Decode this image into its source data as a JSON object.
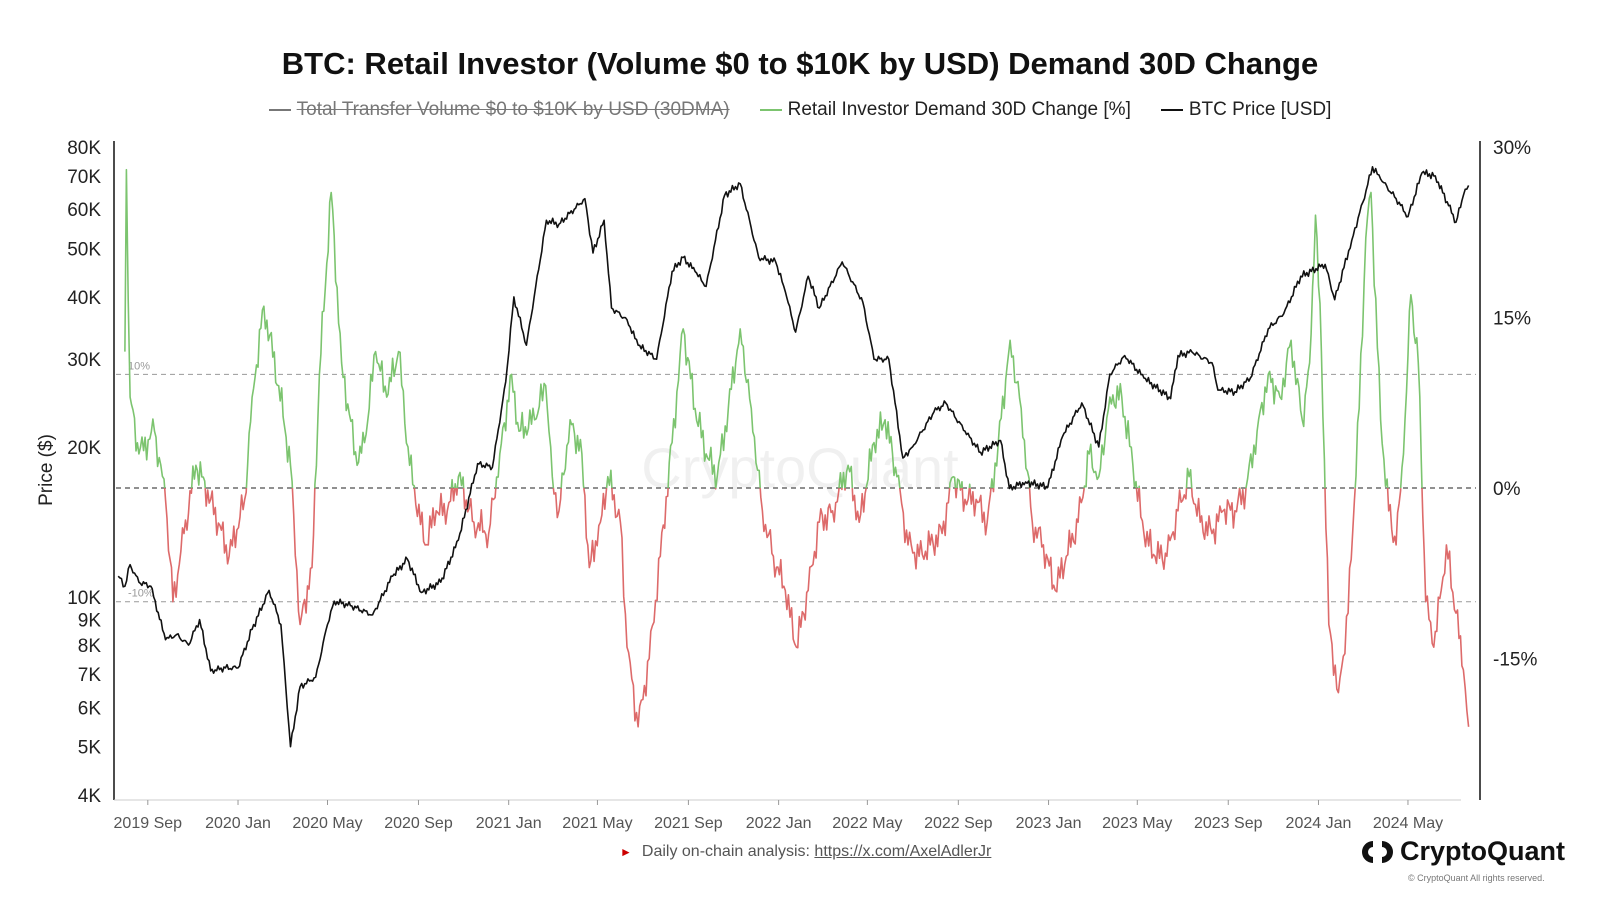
{
  "chart_data": {
    "type": "line",
    "title": "BTC: Retail Investor (Volume $0 to $10K by USD) Demand 30D Change",
    "legend": [
      {
        "name": "Total Transfer Volume $0 to $10K by USD (30DMA)",
        "color": "#777777",
        "hidden": true
      },
      {
        "name": "Retail Investor Demand 30D Change [%]",
        "color": "#7cc46f",
        "hidden": false
      },
      {
        "name": "BTC Price [USD]",
        "color": "#111111",
        "hidden": false
      }
    ],
    "ylabel_left": "Price ($)",
    "yscale_left": "log",
    "ylim_left": [
      4000,
      80000
    ],
    "yticks_left": [
      {
        "v": 80000,
        "label": "80K"
      },
      {
        "v": 70000,
        "label": "70K"
      },
      {
        "v": 60000,
        "label": "60K"
      },
      {
        "v": 50000,
        "label": "50K"
      },
      {
        "v": 40000,
        "label": "40K"
      },
      {
        "v": 30000,
        "label": "30K"
      },
      {
        "v": 20000,
        "label": "20K"
      },
      {
        "v": 10000,
        "label": "10K"
      },
      {
        "v": 9000,
        "label": "9K"
      },
      {
        "v": 8000,
        "label": "8K"
      },
      {
        "v": 7000,
        "label": "7K"
      },
      {
        "v": 6000,
        "label": "6K"
      },
      {
        "v": 5000,
        "label": "5K"
      },
      {
        "v": 4000,
        "label": "4K"
      }
    ],
    "ylim_right": [
      -27,
      30
    ],
    "yticks_right": [
      {
        "v": 30,
        "label": "30%"
      },
      {
        "v": 15,
        "label": "15%"
      },
      {
        "v": 0,
        "label": "0%"
      },
      {
        "v": -15,
        "label": "-15%"
      }
    ],
    "reference_lines": [
      {
        "v": 10,
        "label": "10%",
        "style": "dashed"
      },
      {
        "v": 0,
        "label": "",
        "style": "dashed"
      },
      {
        "v": -10,
        "label": "-10%",
        "style": "dashed"
      }
    ],
    "xlim": [
      "2019-07-20",
      "2024-08-01"
    ],
    "xticks": [
      {
        "date": "2019-09-01",
        "label": "2019 Sep"
      },
      {
        "date": "2020-01-01",
        "label": "2020 Jan"
      },
      {
        "date": "2020-05-01",
        "label": "2020 May"
      },
      {
        "date": "2020-09-01",
        "label": "2020 Sep"
      },
      {
        "date": "2021-01-01",
        "label": "2021 Jan"
      },
      {
        "date": "2021-05-01",
        "label": "2021 May"
      },
      {
        "date": "2021-09-01",
        "label": "2021 Sep"
      },
      {
        "date": "2022-01-01",
        "label": "2022 Jan"
      },
      {
        "date": "2022-05-01",
        "label": "2022 May"
      },
      {
        "date": "2022-09-01",
        "label": "2022 Sep"
      },
      {
        "date": "2023-01-01",
        "label": "2023 Jan"
      },
      {
        "date": "2023-05-01",
        "label": "2023 May"
      },
      {
        "date": "2023-09-01",
        "label": "2023 Sep"
      },
      {
        "date": "2024-01-01",
        "label": "2024 Jan"
      },
      {
        "date": "2024-05-01",
        "label": "2024 May"
      }
    ],
    "series": [
      {
        "name": "BTC Price [USD]",
        "axis": "left",
        "color": "#111111",
        "points": [
          [
            "2019-07-23",
            11000
          ],
          [
            "2019-08-01",
            10500
          ],
          [
            "2019-08-08",
            11600
          ],
          [
            "2019-08-20",
            10700
          ],
          [
            "2019-09-05",
            10500
          ],
          [
            "2019-09-25",
            8200
          ],
          [
            "2019-10-10",
            8400
          ],
          [
            "2019-10-26",
            8000
          ],
          [
            "2019-11-10",
            9000
          ],
          [
            "2019-11-25",
            7100
          ],
          [
            "2019-12-15",
            7200
          ],
          [
            "2020-01-01",
            7200
          ],
          [
            "2020-01-20",
            8600
          ],
          [
            "2020-02-12",
            10300
          ],
          [
            "2020-02-28",
            8800
          ],
          [
            "2020-03-12",
            5000
          ],
          [
            "2020-03-25",
            6600
          ],
          [
            "2020-04-15",
            6900
          ],
          [
            "2020-05-01",
            8800
          ],
          [
            "2020-05-10",
            9800
          ],
          [
            "2020-06-01",
            9600
          ],
          [
            "2020-07-01",
            9200
          ],
          [
            "2020-07-28",
            11000
          ],
          [
            "2020-08-17",
            11900
          ],
          [
            "2020-09-05",
            10200
          ],
          [
            "2020-10-01",
            10700
          ],
          [
            "2020-10-25",
            13000
          ],
          [
            "2020-11-20",
            18500
          ],
          [
            "2020-12-10",
            18200
          ],
          [
            "2020-12-28",
            27000
          ],
          [
            "2021-01-08",
            40000
          ],
          [
            "2021-01-25",
            32000
          ],
          [
            "2021-02-21",
            57000
          ],
          [
            "2021-03-10",
            56000
          ],
          [
            "2021-04-14",
            63000
          ],
          [
            "2021-04-25",
            49000
          ],
          [
            "2021-05-10",
            57000
          ],
          [
            "2021-05-20",
            38000
          ],
          [
            "2021-06-10",
            36000
          ],
          [
            "2021-06-25",
            32000
          ],
          [
            "2021-07-20",
            30000
          ],
          [
            "2021-08-10",
            45000
          ],
          [
            "2021-08-25",
            48000
          ],
          [
            "2021-09-10",
            45000
          ],
          [
            "2021-09-25",
            42000
          ],
          [
            "2021-10-20",
            64000
          ],
          [
            "2021-11-10",
            67500
          ],
          [
            "2021-12-05",
            48000
          ],
          [
            "2021-12-28",
            47000
          ],
          [
            "2022-01-10",
            41000
          ],
          [
            "2022-01-24",
            34000
          ],
          [
            "2022-02-10",
            44000
          ],
          [
            "2022-02-25",
            38000
          ],
          [
            "2022-03-28",
            47000
          ],
          [
            "2022-04-25",
            39000
          ],
          [
            "2022-05-10",
            30000
          ],
          [
            "2022-05-30",
            30000
          ],
          [
            "2022-06-18",
            19000
          ],
          [
            "2022-07-01",
            20000
          ],
          [
            "2022-07-30",
            23500
          ],
          [
            "2022-08-15",
            24500
          ],
          [
            "2022-09-10",
            21500
          ],
          [
            "2022-10-01",
            19500
          ],
          [
            "2022-10-28",
            20600
          ],
          [
            "2022-11-09",
            16500
          ],
          [
            "2022-12-01",
            17000
          ],
          [
            "2022-12-31",
            16600
          ],
          [
            "2023-01-20",
            21000
          ],
          [
            "2023-02-15",
            24500
          ],
          [
            "2023-03-10",
            20000
          ],
          [
            "2023-03-25",
            28000
          ],
          [
            "2023-04-14",
            30500
          ],
          [
            "2023-05-10",
            27500
          ],
          [
            "2023-06-15",
            25000
          ],
          [
            "2023-06-25",
            30500
          ],
          [
            "2023-07-14",
            31000
          ],
          [
            "2023-08-10",
            29500
          ],
          [
            "2023-08-18",
            26000
          ],
          [
            "2023-09-10",
            25800
          ],
          [
            "2023-10-01",
            27500
          ],
          [
            "2023-10-25",
            34500
          ],
          [
            "2023-11-15",
            37000
          ],
          [
            "2023-12-08",
            44000
          ],
          [
            "2024-01-10",
            46500
          ],
          [
            "2024-01-23",
            39500
          ],
          [
            "2024-02-15",
            52000
          ],
          [
            "2024-03-01",
            62000
          ],
          [
            "2024-03-14",
            73000
          ],
          [
            "2024-03-25",
            69000
          ],
          [
            "2024-04-15",
            63000
          ],
          [
            "2024-05-01",
            58000
          ],
          [
            "2024-05-20",
            71000
          ],
          [
            "2024-06-07",
            70000
          ],
          [
            "2024-06-25",
            61000
          ],
          [
            "2024-07-05",
            56500
          ],
          [
            "2024-07-15",
            64000
          ],
          [
            "2024-07-22",
            67000
          ]
        ]
      },
      {
        "name": "Retail Investor Demand 30D Change [%]",
        "axis": "right",
        "color_positive": "#7cc46f",
        "color_negative": "#dd6a6a",
        "points": [
          [
            "2019-08-01",
            12
          ],
          [
            "2019-08-03",
            28
          ],
          [
            "2019-08-08",
            8
          ],
          [
            "2019-08-20",
            3
          ],
          [
            "2019-09-10",
            5
          ],
          [
            "2019-09-25",
            -1
          ],
          [
            "2019-10-05",
            -10
          ],
          [
            "2019-10-20",
            -4
          ],
          [
            "2019-11-05",
            2
          ],
          [
            "2019-11-25",
            -1
          ],
          [
            "2019-12-20",
            -6
          ],
          [
            "2020-01-10",
            -1
          ],
          [
            "2020-01-20",
            8
          ],
          [
            "2020-02-05",
            16
          ],
          [
            "2020-02-25",
            9
          ],
          [
            "2020-03-12",
            2
          ],
          [
            "2020-03-25",
            -12
          ],
          [
            "2020-04-10",
            -7
          ],
          [
            "2020-04-20",
            10
          ],
          [
            "2020-05-06",
            26
          ],
          [
            "2020-05-20",
            11
          ],
          [
            "2020-06-10",
            2
          ],
          [
            "2020-06-20",
            4
          ],
          [
            "2020-07-05",
            12
          ],
          [
            "2020-07-20",
            8
          ],
          [
            "2020-08-05",
            12
          ],
          [
            "2020-08-20",
            2
          ],
          [
            "2020-09-10",
            -5
          ],
          [
            "2020-09-25",
            -2
          ],
          [
            "2020-10-10",
            -2
          ],
          [
            "2020-10-25",
            1
          ],
          [
            "2020-11-15",
            -3
          ],
          [
            "2020-12-05",
            -4
          ],
          [
            "2020-12-20",
            3
          ],
          [
            "2021-01-05",
            10
          ],
          [
            "2021-01-15",
            5
          ],
          [
            "2021-02-05",
            6
          ],
          [
            "2021-02-20",
            9
          ],
          [
            "2021-03-01",
            1
          ],
          [
            "2021-03-10",
            -2
          ],
          [
            "2021-03-25",
            6
          ],
          [
            "2021-04-10",
            3
          ],
          [
            "2021-04-20",
            -7
          ],
          [
            "2021-05-05",
            -3
          ],
          [
            "2021-05-15",
            1
          ],
          [
            "2021-06-01",
            -3
          ],
          [
            "2021-06-10",
            -14
          ],
          [
            "2021-06-25",
            -21
          ],
          [
            "2021-07-10",
            -15
          ],
          [
            "2021-07-25",
            -6
          ],
          [
            "2021-08-10",
            4
          ],
          [
            "2021-08-25",
            14
          ],
          [
            "2021-09-10",
            7
          ],
          [
            "2021-09-25",
            3
          ],
          [
            "2021-10-10",
            1
          ],
          [
            "2021-10-25",
            7
          ],
          [
            "2021-11-10",
            14
          ],
          [
            "2021-11-25",
            7
          ],
          [
            "2021-12-10",
            -2
          ],
          [
            "2021-12-25",
            -6
          ],
          [
            "2022-01-10",
            -9
          ],
          [
            "2022-01-25",
            -14
          ],
          [
            "2022-02-10",
            -9
          ],
          [
            "2022-02-25",
            -3
          ],
          [
            "2022-03-15",
            -2
          ],
          [
            "2022-04-05",
            2
          ],
          [
            "2022-04-20",
            -3
          ],
          [
            "2022-05-10",
            4
          ],
          [
            "2022-05-25",
            6
          ],
          [
            "2022-06-10",
            1
          ],
          [
            "2022-06-25",
            -5
          ],
          [
            "2022-07-10",
            -6
          ],
          [
            "2022-07-25",
            -5
          ],
          [
            "2022-08-10",
            -4
          ],
          [
            "2022-08-25",
            1
          ],
          [
            "2022-09-10",
            -1
          ],
          [
            "2022-09-25",
            -1
          ],
          [
            "2022-10-10",
            -3
          ],
          [
            "2022-10-25",
            4
          ],
          [
            "2022-11-10",
            13
          ],
          [
            "2022-11-25",
            7
          ],
          [
            "2022-12-10",
            -3
          ],
          [
            "2022-12-25",
            -5
          ],
          [
            "2023-01-10",
            -9
          ],
          [
            "2023-01-25",
            -6
          ],
          [
            "2023-02-10",
            -3
          ],
          [
            "2023-02-25",
            3
          ],
          [
            "2023-03-10",
            1
          ],
          [
            "2023-03-25",
            8
          ],
          [
            "2023-04-10",
            8
          ],
          [
            "2023-04-25",
            2
          ],
          [
            "2023-05-10",
            -4
          ],
          [
            "2023-05-25",
            -6
          ],
          [
            "2023-06-10",
            -6
          ],
          [
            "2023-06-25",
            -2
          ],
          [
            "2023-07-10",
            1
          ],
          [
            "2023-07-25",
            -3
          ],
          [
            "2023-08-10",
            -4
          ],
          [
            "2023-08-25",
            -2
          ],
          [
            "2023-09-10",
            -2
          ],
          [
            "2023-09-25",
            0
          ],
          [
            "2023-10-10",
            5
          ],
          [
            "2023-10-25",
            10
          ],
          [
            "2023-11-10",
            8
          ],
          [
            "2023-11-25",
            13
          ],
          [
            "2023-12-10",
            6
          ],
          [
            "2023-12-20",
            11
          ],
          [
            "2023-12-28",
            24
          ],
          [
            "2024-01-05",
            12
          ],
          [
            "2024-01-15",
            -12
          ],
          [
            "2024-01-28",
            -18
          ],
          [
            "2024-02-10",
            -11
          ],
          [
            "2024-02-25",
            7
          ],
          [
            "2024-03-05",
            22
          ],
          [
            "2024-03-12",
            26
          ],
          [
            "2024-03-25",
            6
          ],
          [
            "2024-04-05",
            -2
          ],
          [
            "2024-04-15",
            -5
          ],
          [
            "2024-04-25",
            3
          ],
          [
            "2024-05-05",
            17
          ],
          [
            "2024-05-15",
            11
          ],
          [
            "2024-05-25",
            -10
          ],
          [
            "2024-06-05",
            -14
          ],
          [
            "2024-06-15",
            -9
          ],
          [
            "2024-06-22",
            -5
          ],
          [
            "2024-07-05",
            -11
          ],
          [
            "2024-07-15",
            -16
          ],
          [
            "2024-07-22",
            -21
          ]
        ]
      }
    ],
    "watermark": "CryptoQuant"
  },
  "footer": {
    "text": "Daily on-chain analysis: ",
    "link": "https://x.com/AxelAdlerJr"
  },
  "brand": {
    "name": "CryptoQuant",
    "copyright": "© CryptoQuant All rights reserved."
  },
  "colors": {
    "price": "#111111",
    "demand_positive": "#7cc46f",
    "demand_negative": "#dd6a6a",
    "ref_line": "#999999",
    "axis": "#111111"
  }
}
